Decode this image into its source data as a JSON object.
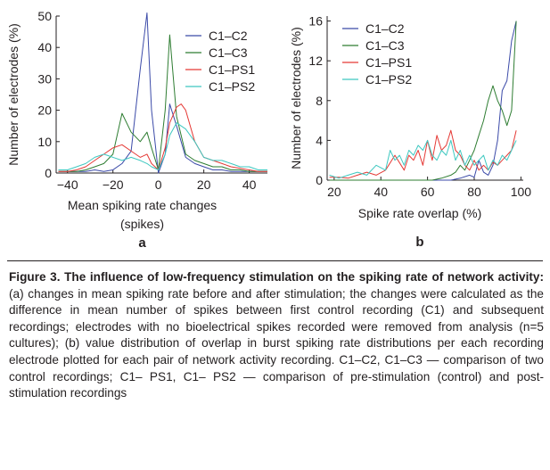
{
  "caption": {
    "title": "Figure 3. The influence of low-frequency stimulation on the spiking rate of network activity:",
    "body": "(a) changes in mean spiking rate before and after stimulation; the changes were calculated as the difference in mean number of spikes between first control recording (C1) and subsequent recordings; electrodes with no bioelectrical spikes recorded were removed from analysis (n=5 cultures); (b) value distribution of overlap in burst spiking rate distributions per each recording electrode plotted for each pair of network activity recording. C1–C2, C1–C3 — comparison of two control recordings; C1– PS1, C1– PS2 — comparison of pre-stimulation (control) and post-stimulation recordings"
  },
  "colors": {
    "C1–C2": "#3b4aa8",
    "C1–C3": "#2e7d32",
    "C1–PS1": "#e53935",
    "C1–PS2": "#3ec8c0",
    "axis": "#231f20"
  },
  "chart_data": [
    {
      "type": "line",
      "panel_label": "a",
      "xlabel": "Mean spiking rate changes",
      "xlabel_line2": "(spikes)",
      "ylabel": "Number of electrodes (%)",
      "xlim": [
        -45,
        48
      ],
      "ylim": [
        0,
        50
      ],
      "xticks": [
        -40,
        -20,
        0,
        20,
        40
      ],
      "xtick_labels": [
        "−40",
        "−20",
        "0",
        "20",
        "40"
      ],
      "yticks": [
        0,
        10,
        20,
        30,
        40,
        50
      ],
      "grid": false,
      "legend_position": "top-right",
      "series": [
        {
          "name": "C1–C2",
          "x": [
            -44,
            -40,
            -36,
            -32,
            -28,
            -24,
            -20,
            -16,
            -12,
            -8,
            -5,
            -3,
            0,
            3,
            5,
            8,
            12,
            16,
            20,
            24,
            28,
            32,
            36,
            40,
            44,
            48
          ],
          "y": [
            0.5,
            0.5,
            0.5,
            0.5,
            1,
            0.5,
            1,
            3,
            7,
            33,
            51,
            20,
            0,
            6,
            22,
            15,
            5,
            3,
            2,
            1,
            1,
            0.5,
            0.5,
            0.5,
            0.5,
            0.5
          ]
        },
        {
          "name": "C1–C3",
          "x": [
            -44,
            -40,
            -36,
            -32,
            -28,
            -24,
            -20,
            -16,
            -12,
            -8,
            -5,
            -3,
            0,
            3,
            5,
            8,
            12,
            16,
            20,
            24,
            28,
            32,
            36,
            40,
            44,
            48
          ],
          "y": [
            0.5,
            0.5,
            0.5,
            1,
            2,
            3,
            6,
            19,
            13,
            10,
            13,
            8,
            1,
            20,
            44,
            18,
            6,
            4,
            3,
            2,
            2,
            1,
            1,
            0.5,
            0.5,
            0.5
          ]
        },
        {
          "name": "C1–PS1",
          "x": [
            -44,
            -40,
            -36,
            -32,
            -28,
            -24,
            -20,
            -16,
            -12,
            -8,
            -5,
            -3,
            0,
            3,
            5,
            8,
            10,
            12,
            16,
            20,
            24,
            28,
            32,
            36,
            40,
            44,
            48
          ],
          "y": [
            0.5,
            0.5,
            1,
            2,
            4,
            6,
            8,
            9,
            7,
            5,
            6,
            3,
            1,
            8,
            16,
            21,
            22,
            20,
            10,
            5,
            4,
            3,
            2,
            1.5,
            1,
            0.5,
            0.5
          ]
        },
        {
          "name": "C1–PS2",
          "x": [
            -44,
            -40,
            -36,
            -32,
            -28,
            -24,
            -20,
            -16,
            -12,
            -8,
            -5,
            -3,
            0,
            3,
            5,
            8,
            12,
            16,
            20,
            24,
            28,
            32,
            36,
            40,
            44,
            48
          ],
          "y": [
            1,
            1,
            2,
            3,
            5,
            6,
            5,
            4,
            5,
            4,
            3,
            2,
            1,
            6,
            12,
            16,
            14,
            10,
            5,
            4,
            4,
            3,
            2,
            2,
            1,
            1
          ]
        }
      ]
    },
    {
      "type": "line",
      "panel_label": "b",
      "xlabel": "Spike rate overlap (%)",
      "ylabel": "Number of electrodes (%)",
      "xlim": [
        17,
        101
      ],
      "ylim": [
        0,
        16.5
      ],
      "xticks": [
        20,
        40,
        60,
        80,
        100
      ],
      "yticks": [
        0,
        4,
        8,
        12,
        16
      ],
      "grid": false,
      "legend_position": "top-left",
      "series": [
        {
          "name": "C1–C2",
          "x": [
            18,
            22,
            26,
            30,
            34,
            38,
            42,
            46,
            50,
            54,
            58,
            62,
            66,
            70,
            74,
            78,
            80,
            82,
            84,
            86,
            88,
            90,
            92,
            94,
            96,
            98
          ],
          "y": [
            0,
            0,
            0,
            0,
            0,
            0,
            0,
            0,
            0,
            0,
            0,
            0,
            0,
            0,
            0.2,
            0.5,
            0.3,
            2,
            0.8,
            0.5,
            1.5,
            4,
            9,
            10,
            14,
            16
          ]
        },
        {
          "name": "C1–C3",
          "x": [
            18,
            22,
            26,
            30,
            34,
            38,
            42,
            46,
            50,
            54,
            58,
            62,
            66,
            70,
            72,
            74,
            76,
            78,
            80,
            82,
            84,
            86,
            88,
            90,
            92,
            94,
            96,
            98
          ],
          "y": [
            0,
            0,
            0,
            0,
            0,
            0,
            0,
            0,
            0,
            0,
            0,
            0,
            0.2,
            0.5,
            0.8,
            1.5,
            1,
            2,
            3,
            4.5,
            6,
            8,
            9.5,
            8,
            7,
            5.5,
            7,
            16
          ]
        },
        {
          "name": "C1–PS1",
          "x": [
            18,
            22,
            26,
            30,
            34,
            38,
            42,
            46,
            50,
            52,
            54,
            56,
            58,
            60,
            62,
            64,
            66,
            68,
            70,
            72,
            74,
            76,
            78,
            80,
            82,
            84,
            86,
            88,
            90,
            92,
            94,
            96,
            98
          ],
          "y": [
            0.3,
            0.3,
            0.2,
            0.5,
            0.8,
            0.5,
            1,
            2.5,
            1,
            2.5,
            2,
            3,
            1.5,
            4,
            2,
            4.5,
            3,
            3.5,
            5,
            3,
            2.5,
            1.5,
            1,
            2,
            1,
            1.5,
            1,
            1.8,
            1.5,
            2,
            2.5,
            3,
            5
          ]
        },
        {
          "name": "C1–PS2",
          "x": [
            18,
            22,
            26,
            30,
            34,
            38,
            42,
            44,
            46,
            48,
            50,
            52,
            54,
            56,
            58,
            60,
            62,
            64,
            66,
            68,
            70,
            72,
            74,
            76,
            78,
            80,
            82,
            84,
            86,
            88,
            90,
            92,
            94,
            96,
            98
          ],
          "y": [
            0.5,
            0.2,
            0.5,
            0.8,
            0.5,
            1.5,
            1,
            3,
            2,
            2.5,
            1.5,
            3,
            2.5,
            3.5,
            3,
            4,
            2.5,
            2,
            3,
            2.5,
            4,
            2,
            3,
            1.5,
            2.5,
            1.5,
            2,
            2.5,
            1,
            2,
            1.5,
            2.5,
            2,
            3,
            4
          ]
        }
      ]
    }
  ]
}
